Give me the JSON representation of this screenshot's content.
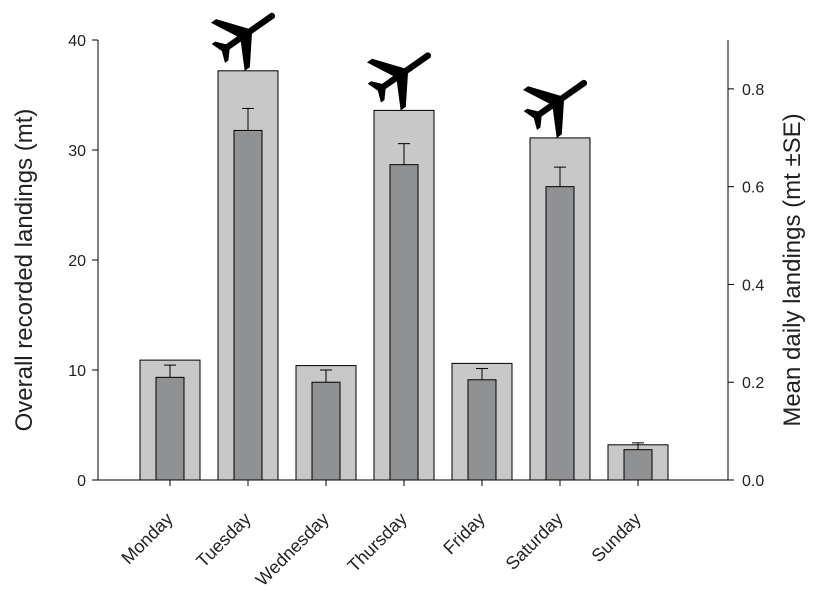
{
  "chart_data": {
    "type": "bar",
    "categories": [
      "Monday",
      "Tuesday",
      "Wednesday",
      "Thursday",
      "Friday",
      "Saturday",
      "Sunday"
    ],
    "ylabel_left": "Overall recorded landings (mt)",
    "ylabel_right": "Mean daily landings (mt ±SE)",
    "left_axis": {
      "ylim": [
        0,
        40
      ],
      "ticks": [
        0,
        10,
        20,
        30,
        40
      ],
      "tick_labels": [
        "0",
        "10",
        "20",
        "30",
        "40"
      ]
    },
    "right_axis": {
      "ylim": [
        0.0,
        0.9
      ],
      "ticks": [
        0.0,
        0.2,
        0.4,
        0.6,
        0.8
      ],
      "tick_labels": [
        "0.0",
        "0.2",
        "0.4",
        "0.6",
        "0.8"
      ]
    },
    "series": [
      {
        "axis": "left",
        "color": "#c8c8c8",
        "values": [
          10.9,
          37.2,
          10.4,
          33.6,
          10.6,
          31.1,
          3.2
        ]
      },
      {
        "axis": "right",
        "color": "#8f9193",
        "values": [
          0.21,
          0.715,
          0.2,
          0.645,
          0.205,
          0.6,
          0.062
        ],
        "error_plus": [
          0.025,
          0.045,
          0.025,
          0.043,
          0.023,
          0.04,
          0.014
        ]
      }
    ],
    "airplane_markers": [
      "Tuesday",
      "Thursday",
      "Saturday"
    ],
    "icons": {
      "marker": "airplane-icon"
    },
    "grid": false,
    "legend": "none"
  }
}
